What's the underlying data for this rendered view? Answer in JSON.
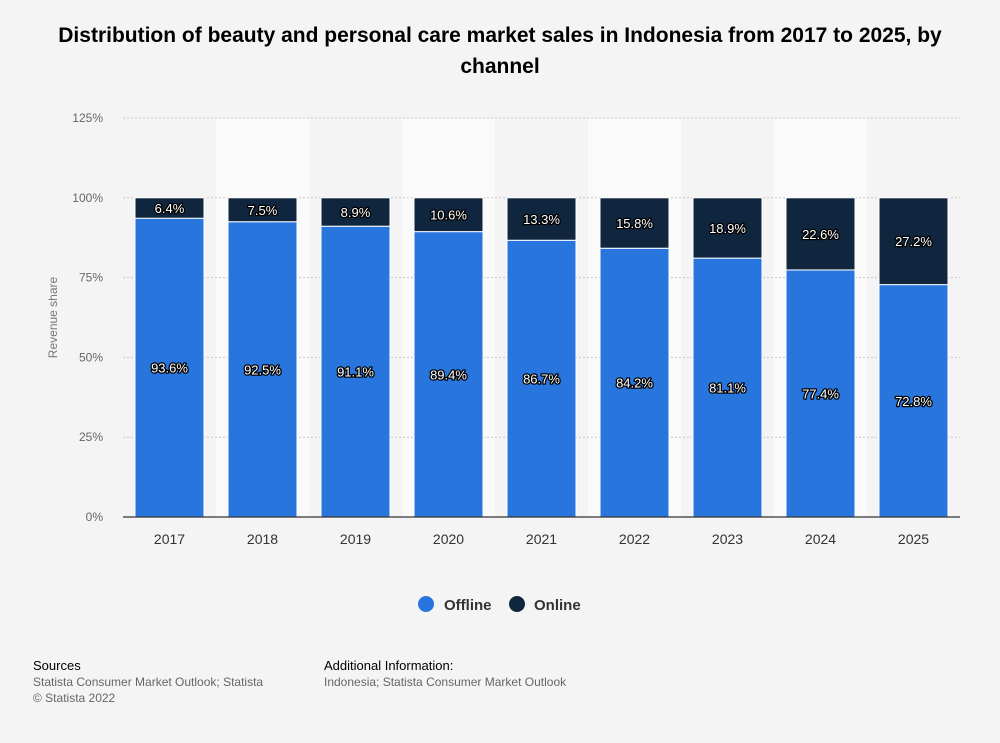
{
  "title": "Distribution of beauty and personal care market sales in Indonesia from 2017 to 2025, by channel",
  "sources": {
    "heading": "Sources",
    "lines": [
      "Statista Consumer Market Outlook; Statista",
      "© Statista 2022"
    ]
  },
  "additional_info": {
    "heading": "Additional Information:",
    "lines": [
      "Indonesia; Statista Consumer Market Outlook"
    ]
  },
  "chart_data": {
    "type": "bar",
    "stacked": true,
    "title": "Distribution of beauty and personal care market sales in Indonesia from 2017 to 2025, by channel",
    "xlabel": "",
    "ylabel": "Revenue share",
    "ylim": [
      0,
      125
    ],
    "yticks": [
      0,
      25,
      50,
      75,
      100,
      125
    ],
    "ytick_labels": [
      "0%",
      "25%",
      "50%",
      "75%",
      "100%",
      "125%"
    ],
    "grid": true,
    "legend_position": "bottom",
    "categories": [
      "2017",
      "2018",
      "2019",
      "2020",
      "2021",
      "2022",
      "2023",
      "2024",
      "2025"
    ],
    "series": [
      {
        "name": "Offline",
        "color": "#2876dd",
        "values": [
          93.6,
          92.5,
          91.1,
          89.4,
          86.7,
          84.2,
          81.1,
          77.4,
          72.8
        ]
      },
      {
        "name": "Online",
        "color": "#10263f",
        "values": [
          6.4,
          7.5,
          8.9,
          10.6,
          13.3,
          15.8,
          18.9,
          22.6,
          27.2
        ]
      }
    ]
  }
}
